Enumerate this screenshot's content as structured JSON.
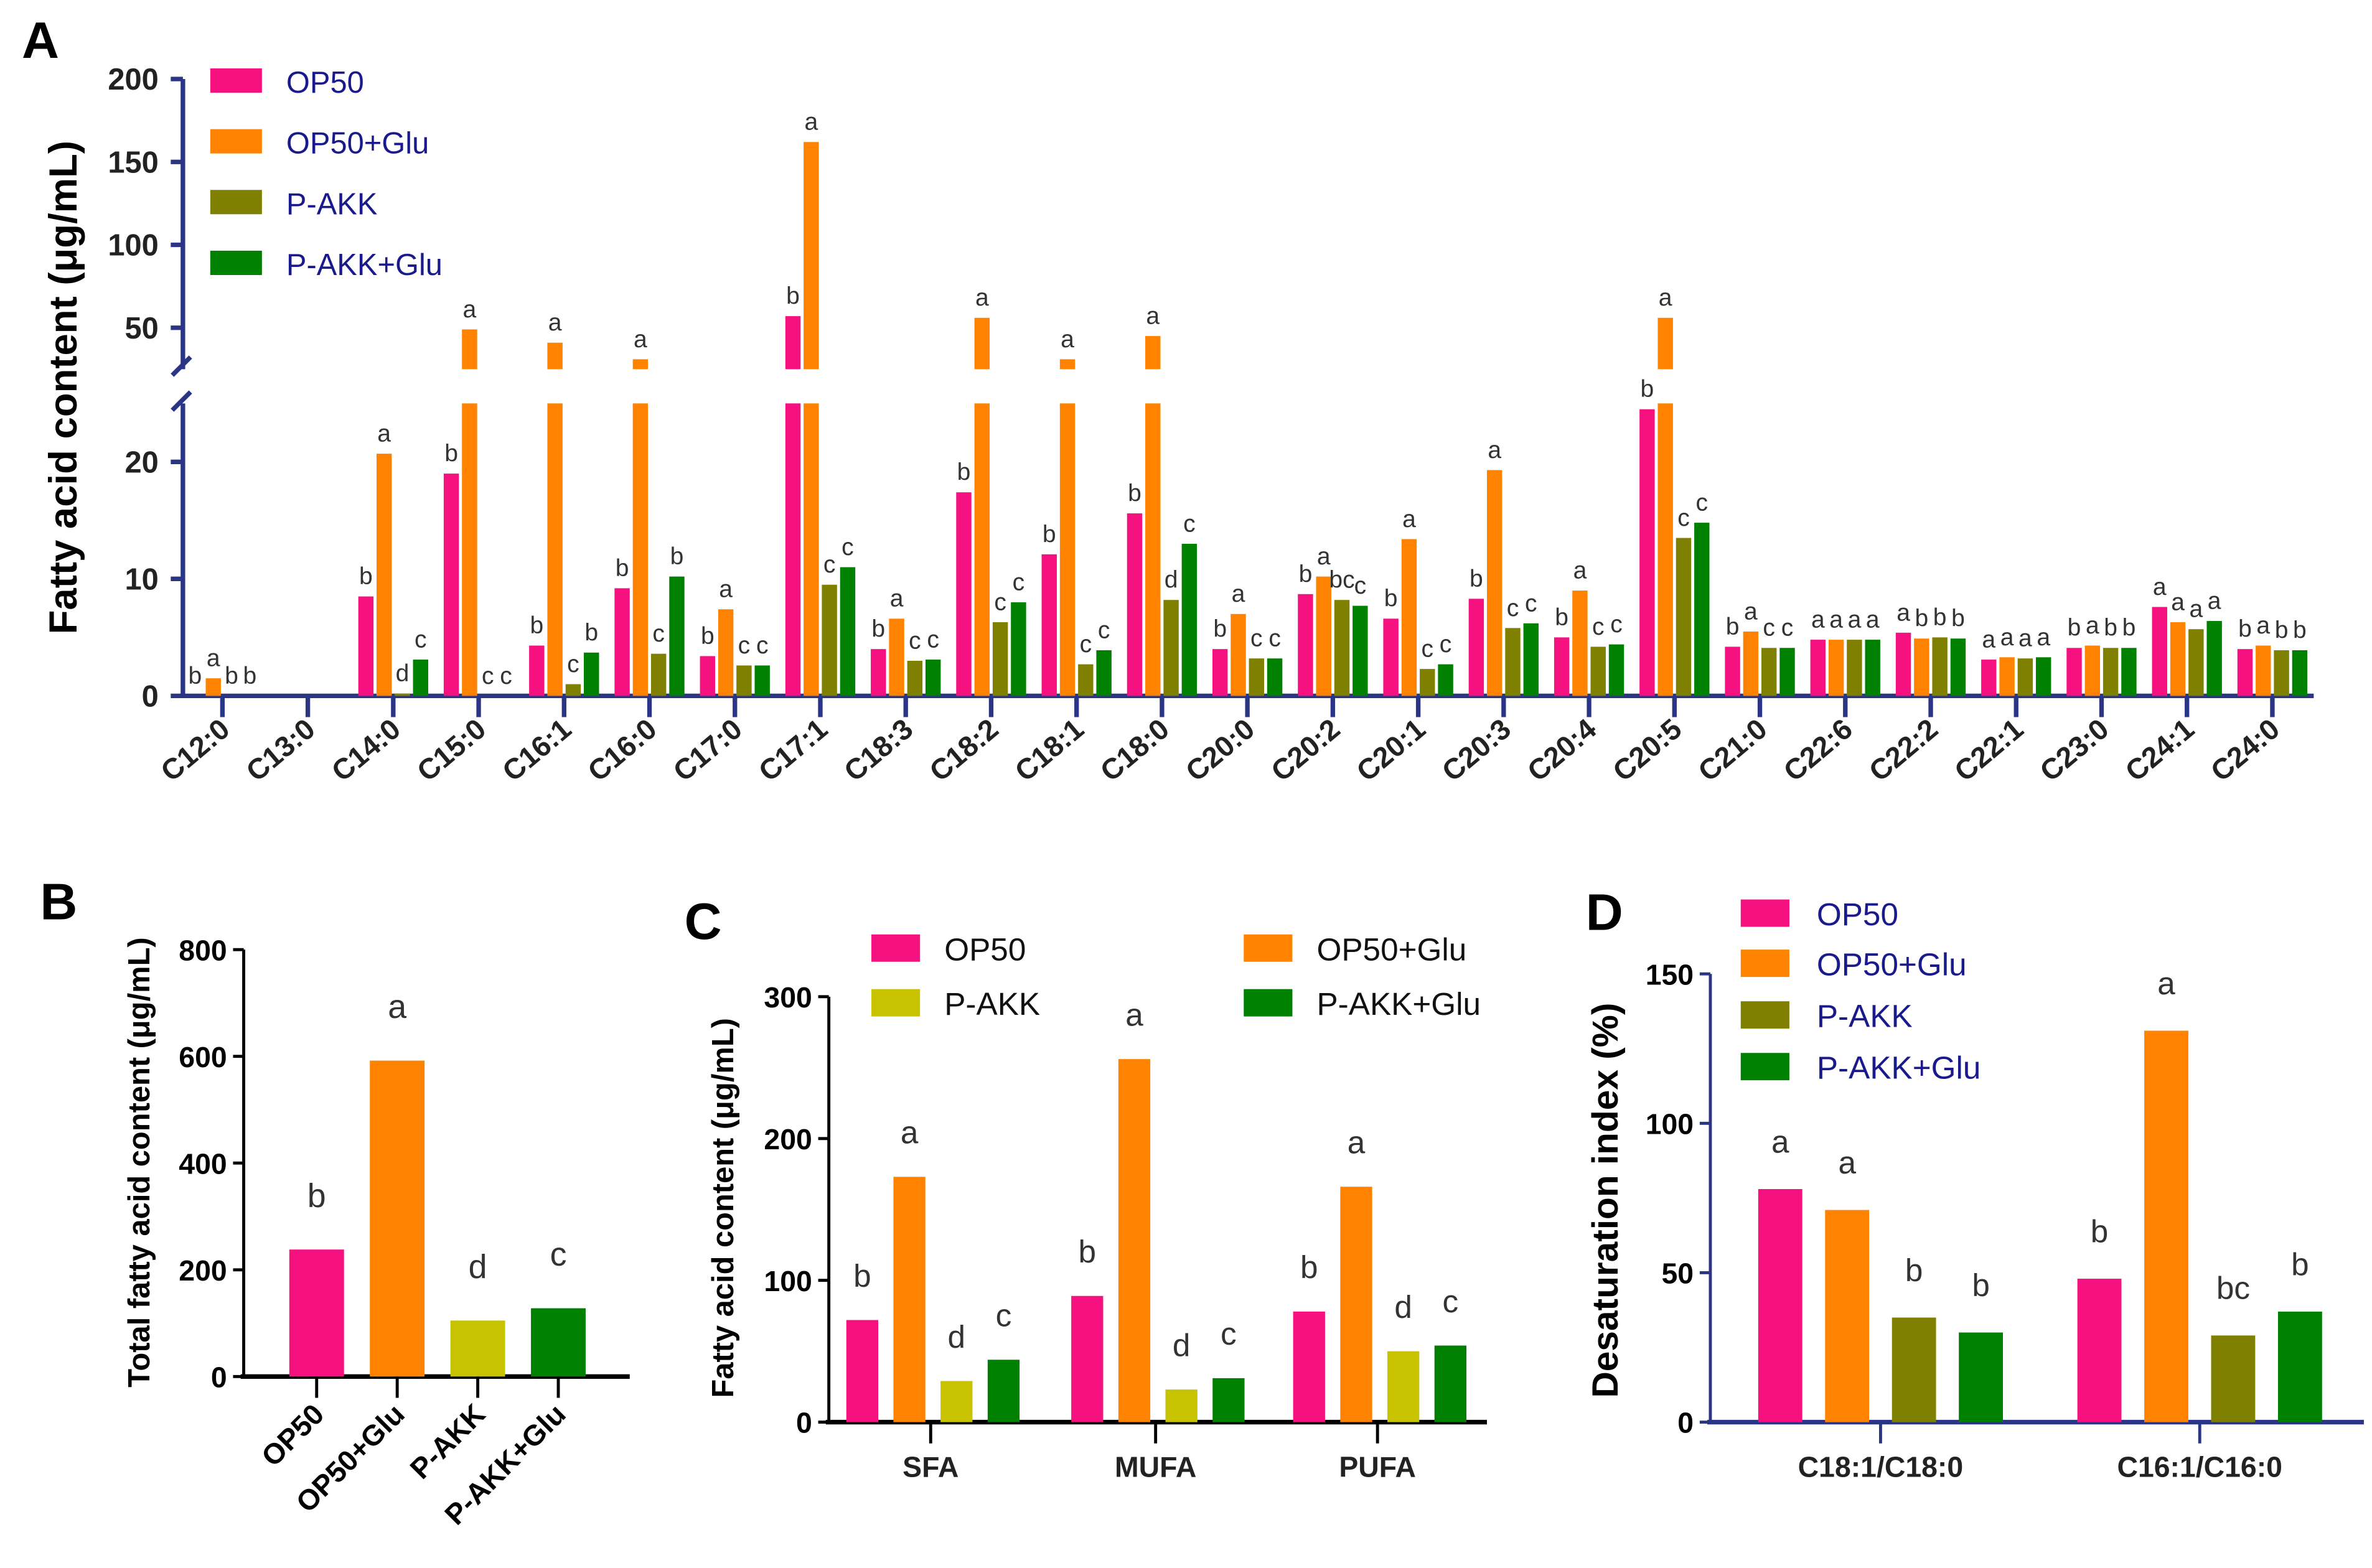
{
  "panel_letters": [
    "A",
    "B",
    "C",
    "D"
  ],
  "colors": {
    "OP50": "#f5117f",
    "OP50+Glu": "#ff8200",
    "P-AKK": "#808000",
    "P-AKK+Glu": "#008000",
    "P-AKK_light": "#c8c300",
    "axis_navy": "#2b3585",
    "legend_text_navy": "#1a1a8c"
  },
  "chart_data": [
    {
      "type": "bar",
      "panel": "A",
      "ylabel": "Fatty acid content (μg/mL)",
      "xlabel": "",
      "y_axis_break": [
        25,
        45
      ],
      "ylim": [
        0,
        200
      ],
      "yticks": [
        0,
        10,
        20,
        50,
        100,
        150,
        200
      ],
      "legend_position": "top-left",
      "categories": [
        "C12:0",
        "C13:0",
        "C14:0",
        "C15:0",
        "C16:1",
        "C16:0",
        "C17:0",
        "C17:1",
        "C18:3",
        "C18:2",
        "C18:1",
        "C18:0",
        "C20:0",
        "C20:2",
        "C20:1",
        "C20:3",
        "C20:4",
        "C20:5",
        "C21:0",
        "C22:6",
        "C22:2",
        "C22:1",
        "C23:0",
        "C24:1",
        "C24:0"
      ],
      "series": [
        {
          "name": "OP50",
          "values": [
            0,
            0,
            8.5,
            19,
            4.3,
            9.2,
            3.4,
            57,
            4.0,
            17.4,
            12.1,
            15.6,
            4.0,
            8.7,
            6.6,
            8.3,
            5.0,
            24.5,
            4.2,
            4.8,
            5.4,
            3.1,
            4.1,
            7.6,
            4.0
          ],
          "letters": [
            "b",
            "",
            "b",
            "b",
            "b",
            "b",
            "b",
            "b",
            "b",
            "b",
            "b",
            "b",
            "b",
            "b",
            "b",
            "b",
            "b",
            "b",
            "b",
            "a",
            "a",
            "a",
            "b",
            "a",
            "b"
          ]
        },
        {
          "name": "OP50+Glu",
          "values": [
            1.5,
            0,
            20.7,
            49,
            41,
            31,
            7.4,
            162,
            6.6,
            56,
            31,
            45,
            7.0,
            10.2,
            13.4,
            19.3,
            9.0,
            56,
            5.5,
            4.8,
            4.9,
            3.3,
            4.3,
            6.3,
            4.3
          ],
          "letters": [
            "a",
            "",
            "a",
            "a",
            "a",
            "a",
            "a",
            "a",
            "a",
            "a",
            "a",
            "a",
            "a",
            "a",
            "a",
            "a",
            "a",
            "a",
            "a",
            "a",
            "b",
            "a",
            "a",
            "a",
            "a"
          ]
        },
        {
          "name": "P-AKK",
          "values": [
            0,
            0,
            0.2,
            0,
            1.0,
            3.6,
            2.6,
            9.5,
            3.0,
            6.3,
            2.7,
            8.2,
            3.2,
            8.2,
            2.3,
            5.8,
            4.2,
            13.5,
            4.1,
            4.8,
            5.0,
            3.2,
            4.1,
            5.7,
            3.9
          ],
          "letters": [
            "b",
            "",
            "d",
            "c",
            "c",
            "c",
            "c",
            "c",
            "c",
            "c",
            "c",
            "d",
            "c",
            "bc",
            "c",
            "c",
            "c",
            "c",
            "c",
            "a",
            "b",
            "a",
            "b",
            "a",
            "b"
          ]
        },
        {
          "name": "P-AKK+Glu",
          "values": [
            0,
            0,
            3.1,
            0,
            3.7,
            10.2,
            2.6,
            11,
            3.1,
            8.0,
            3.9,
            13,
            3.2,
            7.7,
            2.7,
            6.2,
            4.4,
            14.8,
            4.1,
            4.8,
            4.9,
            3.3,
            4.1,
            6.4,
            3.9
          ],
          "letters": [
            "b",
            "",
            "c",
            "c",
            "b",
            "b",
            "c",
            "c",
            "c",
            "c",
            "c",
            "c",
            "c",
            "c",
            "c",
            "c",
            "c",
            "c",
            "c",
            "a",
            "b",
            "a",
            "b",
            "a",
            "b"
          ]
        }
      ]
    },
    {
      "type": "bar",
      "panel": "B",
      "ylabel": "Total fatty acid content (μg/mL)",
      "xlabel": "",
      "ylim": [
        0,
        800
      ],
      "yticks": [
        0,
        200,
        400,
        600,
        800
      ],
      "categories": [
        "OP50",
        "OP50+Glu",
        "P-AKK",
        "P-AKK+Glu"
      ],
      "values": [
        238,
        592,
        105,
        128
      ],
      "letters": [
        "b",
        "a",
        "d",
        "c"
      ]
    },
    {
      "type": "bar",
      "panel": "C",
      "ylabel": "Fatty acid content (μg/mL)",
      "xlabel": "",
      "ylim": [
        0,
        300
      ],
      "yticks": [
        0,
        100,
        200,
        300
      ],
      "legend_position": "top",
      "categories": [
        "SFA",
        "MUFA",
        "PUFA"
      ],
      "series": [
        {
          "name": "OP50",
          "values": [
            72,
            89,
            78
          ],
          "letters": [
            "b",
            "b",
            "b"
          ]
        },
        {
          "name": "OP50+Glu",
          "values": [
            173,
            256,
            166
          ],
          "letters": [
            "a",
            "a",
            "a"
          ]
        },
        {
          "name": "P-AKK",
          "values": [
            29,
            23,
            50
          ],
          "letters": [
            "d",
            "d",
            "d"
          ]
        },
        {
          "name": "P-AKK+Glu",
          "values": [
            44,
            31,
            54
          ],
          "letters": [
            "c",
            "c",
            "c"
          ]
        }
      ]
    },
    {
      "type": "bar",
      "panel": "D",
      "ylabel": "Desaturation index (%)",
      "xlabel": "",
      "ylim": [
        0,
        150
      ],
      "yticks": [
        0,
        50,
        100,
        150
      ],
      "legend_position": "top-left",
      "categories": [
        "C18:1/C18:0",
        "C16:1/C16:0"
      ],
      "series": [
        {
          "name": "OP50",
          "values": [
            78,
            48
          ],
          "letters": [
            "a",
            "b"
          ]
        },
        {
          "name": "OP50+Glu",
          "values": [
            71,
            131
          ],
          "letters": [
            "a",
            "a"
          ]
        },
        {
          "name": "P-AKK",
          "values": [
            35,
            29
          ],
          "letters": [
            "b",
            "bc"
          ]
        },
        {
          "name": "P-AKK+Glu",
          "values": [
            30,
            37
          ],
          "letters": [
            "b",
            "b"
          ]
        }
      ]
    }
  ]
}
